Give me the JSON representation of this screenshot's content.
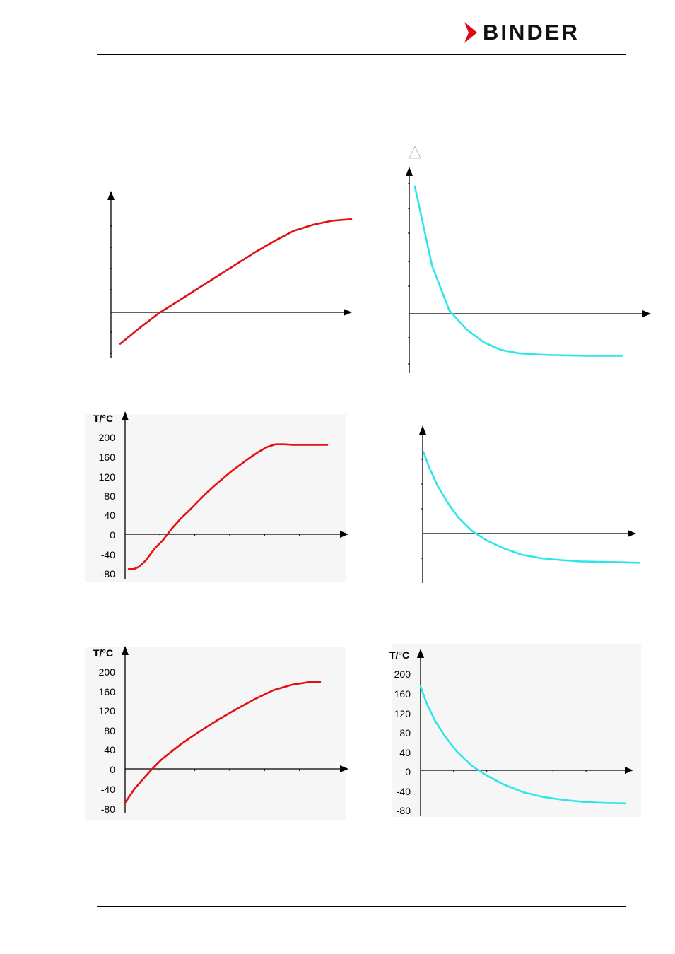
{
  "header": {
    "brand": "BINDER",
    "brand_color": "#e30613"
  },
  "chart_data": [
    {
      "type": "line",
      "axis_labels_visible": false,
      "series": [
        {
          "color": "#e31010",
          "x": [
            0,
            1,
            2,
            3,
            4,
            5,
            6,
            7,
            8,
            9,
            10,
            11,
            12
          ],
          "values": [
            -62,
            -31,
            -2,
            22,
            46,
            70,
            94,
            118,
            140,
            160,
            172,
            180,
            183
          ]
        }
      ],
      "ylim": [
        -80,
        200
      ]
    },
    {
      "type": "line",
      "axis_labels_visible": false,
      "series": [
        {
          "color": "#2de6ea",
          "x": [
            0,
            1,
            2,
            3,
            4,
            5,
            6,
            7,
            8,
            9,
            10,
            11,
            12
          ],
          "values": [
            200,
            75,
            5,
            -25,
            -45,
            -57,
            -62,
            -64,
            -65,
            -65.5,
            -66,
            -66,
            -66
          ]
        }
      ],
      "ylim": [
        -80,
        200
      ]
    },
    {
      "type": "line",
      "ylabel": "T/°C",
      "yticks": [
        200,
        160,
        120,
        80,
        40,
        0,
        -40,
        -80
      ],
      "series": [
        {
          "color": "#e31010",
          "x": [
            0,
            0.3,
            0.6,
            1,
            1.5,
            2,
            2.5,
            3,
            3.5,
            4,
            4.5,
            5,
            5.5,
            6,
            6.5,
            7,
            7.5,
            8,
            8.5,
            9,
            9.5,
            10,
            10.5,
            11,
            11.5
          ],
          "values": [
            -70,
            -70,
            -65,
            -52,
            -28,
            -10,
            13,
            33,
            50,
            68,
            86,
            102,
            117,
            132,
            145,
            158,
            170,
            180,
            186,
            186,
            185,
            185,
            185,
            185,
            185
          ]
        }
      ],
      "ylim": [
        -80,
        200
      ]
    },
    {
      "type": "line",
      "axis_labels_visible": false,
      "series": [
        {
          "color": "#2de6ea",
          "x": [
            0,
            0.3,
            0.7,
            1.2,
            1.8,
            2.5,
            3.2,
            4,
            5,
            6,
            7,
            8,
            9,
            10,
            11
          ],
          "values": [
            185,
            150,
            110,
            72,
            35,
            5,
            -15,
            -32,
            -48,
            -56,
            -60,
            -63,
            -64,
            -65,
            -66
          ]
        }
      ],
      "ylim": [
        -80,
        200
      ]
    },
    {
      "type": "line",
      "ylabel": "T/°C",
      "yticks": [
        200,
        160,
        120,
        80,
        40,
        0,
        -40,
        -80
      ],
      "series": [
        {
          "color": "#e31010",
          "x": [
            0,
            0.5,
            1,
            1.5,
            2,
            3,
            4,
            5,
            6,
            7,
            8,
            9,
            10,
            10.5
          ],
          "values": [
            -68,
            -40,
            -18,
            3,
            22,
            52,
            78,
            102,
            124,
            145,
            163,
            174,
            180,
            180
          ]
        }
      ],
      "ylim": [
        -80,
        200
      ]
    },
    {
      "type": "line",
      "ylabel": "T/°C",
      "yticks": [
        200,
        160,
        120,
        80,
        40,
        0,
        -40,
        -80
      ],
      "series": [
        {
          "color": "#2de6ea",
          "x": [
            0,
            0.3,
            0.7,
            1.2,
            1.8,
            2.5,
            3.2,
            4,
            5,
            6,
            7,
            8,
            9,
            10
          ],
          "values": [
            175,
            140,
            105,
            72,
            40,
            12,
            -7,
            -25,
            -42,
            -52,
            -58,
            -62,
            -64,
            -65
          ]
        }
      ],
      "ylim": [
        -80,
        200
      ]
    }
  ]
}
